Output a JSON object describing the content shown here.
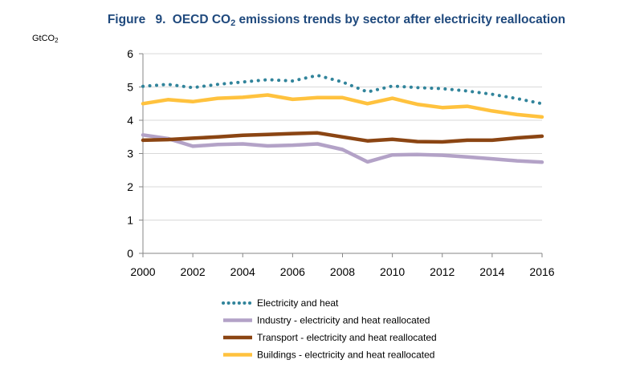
{
  "colors": {
    "title": "#1f497d",
    "electricity": "#31849b",
    "industry": "#b3a2c7",
    "transport": "#8b4513",
    "buildings": "#ffc23e",
    "grid": "#d9d9d9",
    "axis": "#868686"
  },
  "chart_data": {
    "type": "line",
    "title_prefix": "Figure",
    "title_num": "9.",
    "title_a": "OECD CO",
    "title_sub": "2",
    "title_b": " emissions trends by sector after electricity reallocation",
    "ylabel_main": "GtCO",
    "ylabel_sub": "2",
    "xlabel": "",
    "ylim": [
      0,
      6
    ],
    "yticks": [
      0,
      1,
      2,
      3,
      4,
      5,
      6
    ],
    "xlim": [
      2000,
      2016
    ],
    "xticks": [
      2000,
      2002,
      2004,
      2006,
      2008,
      2010,
      2012,
      2014,
      2016
    ],
    "grid": true,
    "legend_position": "bottom",
    "x": [
      2000,
      2001,
      2002,
      2003,
      2004,
      2005,
      2006,
      2007,
      2008,
      2009,
      2010,
      2011,
      2012,
      2013,
      2014,
      2015,
      2016
    ],
    "series": [
      {
        "key": "electricity",
        "name": "Electricity and heat",
        "style": "dotted",
        "values": [
          5.02,
          5.08,
          4.98,
          5.08,
          5.15,
          5.22,
          5.18,
          5.35,
          5.15,
          4.85,
          5.03,
          4.98,
          4.95,
          4.88,
          4.78,
          4.65,
          4.5
        ]
      },
      {
        "key": "industry",
        "name": "Industry - electricity and heat reallocated",
        "style": "solid",
        "values": [
          3.56,
          3.45,
          3.22,
          3.27,
          3.29,
          3.23,
          3.25,
          3.29,
          3.12,
          2.75,
          2.96,
          2.97,
          2.95,
          2.9,
          2.84,
          2.78,
          2.74
        ]
      },
      {
        "key": "transport",
        "name": "Transport - electricity and heat reallocated",
        "style": "solid",
        "values": [
          3.4,
          3.42,
          3.46,
          3.5,
          3.55,
          3.57,
          3.6,
          3.62,
          3.5,
          3.38,
          3.43,
          3.36,
          3.35,
          3.4,
          3.4,
          3.47,
          3.52
        ]
      },
      {
        "key": "buildings",
        "name": "Buildings - electricity and heat reallocated",
        "style": "solid",
        "values": [
          4.5,
          4.62,
          4.56,
          4.66,
          4.69,
          4.76,
          4.63,
          4.68,
          4.68,
          4.5,
          4.66,
          4.48,
          4.38,
          4.42,
          4.28,
          4.17,
          4.1
        ]
      }
    ]
  }
}
